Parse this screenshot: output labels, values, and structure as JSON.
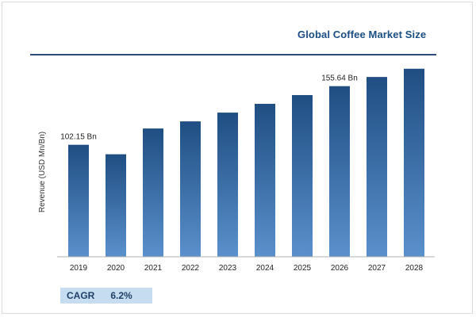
{
  "chart_data": {
    "type": "bar",
    "title": "Global Coffee Market Size",
    "ylabel": "Revenue (USD Mn/Bn)",
    "xlabel": "",
    "categories": [
      "2019",
      "2020",
      "2021",
      "2022",
      "2023",
      "2024",
      "2025",
      "2026",
      "2027",
      "2028"
    ],
    "values": [
      102.15,
      93.5,
      117.0,
      123.5,
      131.5,
      139.5,
      147.5,
      155.64,
      164.0,
      171.5
    ],
    "data_labels": [
      {
        "category": "2019",
        "text": "102.15 Bn"
      },
      {
        "category": "2026",
        "text": "155.64 Bn"
      }
    ],
    "ylim": [
      0,
      180
    ],
    "grid": false,
    "bar_color_top": "#1f4e82",
    "bar_color_bottom": "#5a90cc"
  },
  "cagr": {
    "label": "CAGR",
    "value": "6.2%"
  }
}
